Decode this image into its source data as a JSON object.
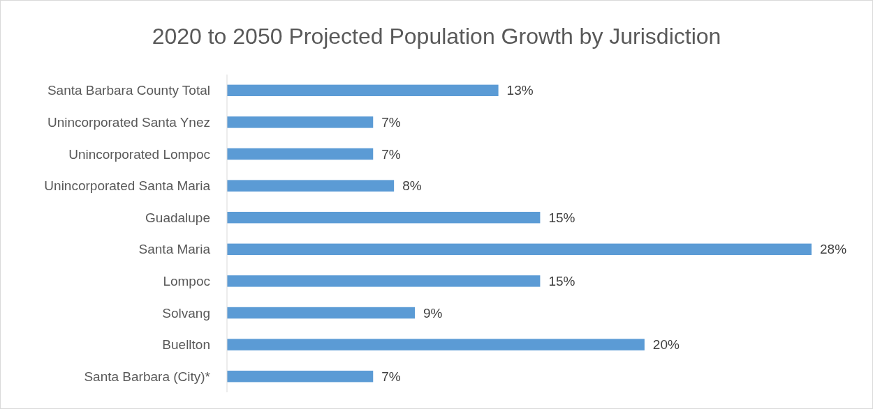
{
  "chart_data": {
    "type": "bar",
    "orientation": "horizontal",
    "title": "2020 to 2050 Projected Population Growth by Jurisdiction",
    "categories": [
      "Santa Barbara County Total",
      "Unincorporated Santa Ynez",
      "Unincorporated Lompoc",
      "Unincorporated Santa Maria",
      "Guadalupe",
      "Santa Maria",
      "Lompoc",
      "Solvang",
      "Buellton",
      "Santa Barbara (City)*"
    ],
    "values": [
      13,
      7,
      7,
      8,
      15,
      28,
      15,
      9,
      20,
      7
    ],
    "value_labels": [
      "13%",
      "7%",
      "7%",
      "8%",
      "15%",
      "28%",
      "15%",
      "9%",
      "20%",
      "7%"
    ],
    "color": "#5b9bd5"
  }
}
